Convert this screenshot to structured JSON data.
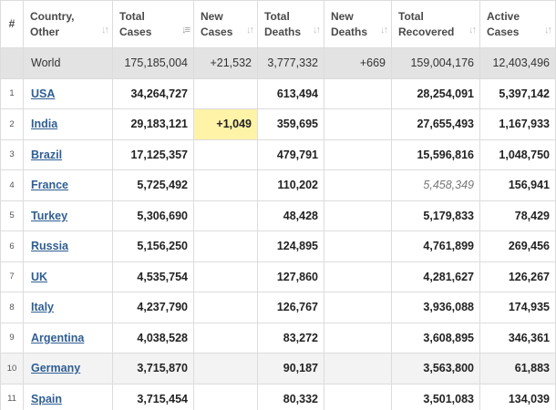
{
  "headers": [
    {
      "line1": "#",
      "line2": ""
    },
    {
      "line1": "Country,",
      "line2": "Other"
    },
    {
      "line1": "Total",
      "line2": "Cases"
    },
    {
      "line1": "New",
      "line2": "Cases"
    },
    {
      "line1": "Total",
      "line2": "Deaths"
    },
    {
      "line1": "New",
      "line2": "Deaths"
    },
    {
      "line1": "Total",
      "line2": "Recovered"
    },
    {
      "line1": "Active",
      "line2": "Cases"
    }
  ],
  "world": {
    "name": "World",
    "total_cases": "175,185,004",
    "new_cases": "+21,532",
    "total_deaths": "3,777,332",
    "new_deaths": "+669",
    "total_recovered": "159,004,176",
    "active_cases": "12,403,496"
  },
  "rows": [
    {
      "rank": "1",
      "country": "USA",
      "total_cases": "34,264,727",
      "new_cases": "",
      "total_deaths": "613,494",
      "new_deaths": "",
      "total_recovered": "28,254,091",
      "active_cases": "5,397,142"
    },
    {
      "rank": "2",
      "country": "India",
      "total_cases": "29,183,121",
      "new_cases": "+1,049",
      "total_deaths": "359,695",
      "new_deaths": "",
      "total_recovered": "27,655,493",
      "active_cases": "1,167,933"
    },
    {
      "rank": "3",
      "country": "Brazil",
      "total_cases": "17,125,357",
      "new_cases": "",
      "total_deaths": "479,791",
      "new_deaths": "",
      "total_recovered": "15,596,816",
      "active_cases": "1,048,750"
    },
    {
      "rank": "4",
      "country": "France",
      "total_cases": "5,725,492",
      "new_cases": "",
      "total_deaths": "110,202",
      "new_deaths": "",
      "total_recovered": "5,458,349",
      "active_cases": "156,941"
    },
    {
      "rank": "5",
      "country": "Turkey",
      "total_cases": "5,306,690",
      "new_cases": "",
      "total_deaths": "48,428",
      "new_deaths": "",
      "total_recovered": "5,179,833",
      "active_cases": "78,429"
    },
    {
      "rank": "6",
      "country": "Russia",
      "total_cases": "5,156,250",
      "new_cases": "",
      "total_deaths": "124,895",
      "new_deaths": "",
      "total_recovered": "4,761,899",
      "active_cases": "269,456"
    },
    {
      "rank": "7",
      "country": "UK",
      "total_cases": "4,535,754",
      "new_cases": "",
      "total_deaths": "127,860",
      "new_deaths": "",
      "total_recovered": "4,281,627",
      "active_cases": "126,267"
    },
    {
      "rank": "8",
      "country": "Italy",
      "total_cases": "4,237,790",
      "new_cases": "",
      "total_deaths": "126,767",
      "new_deaths": "",
      "total_recovered": "3,936,088",
      "active_cases": "174,935"
    },
    {
      "rank": "9",
      "country": "Argentina",
      "total_cases": "4,038,528",
      "new_cases": "",
      "total_deaths": "83,272",
      "new_deaths": "",
      "total_recovered": "3,608,895",
      "active_cases": "346,361"
    },
    {
      "rank": "10",
      "country": "Germany",
      "total_cases": "3,715,870",
      "new_cases": "",
      "total_deaths": "90,187",
      "new_deaths": "",
      "total_recovered": "3,563,800",
      "active_cases": "61,883"
    },
    {
      "rank": "11",
      "country": "Spain",
      "total_cases": "3,715,454",
      "new_cases": "",
      "total_deaths": "80,332",
      "new_deaths": "",
      "total_recovered": "3,501,083",
      "active_cases": "134,039"
    }
  ],
  "icons": {
    "sort": "sort-arrows-icon",
    "sort_active": "sort-descending-icon"
  },
  "colors": {
    "link": "#2f5e93",
    "world_row": "#e3e3e3",
    "new_cases_highlight": "#fff3a8",
    "border": "#dcdcdc"
  }
}
